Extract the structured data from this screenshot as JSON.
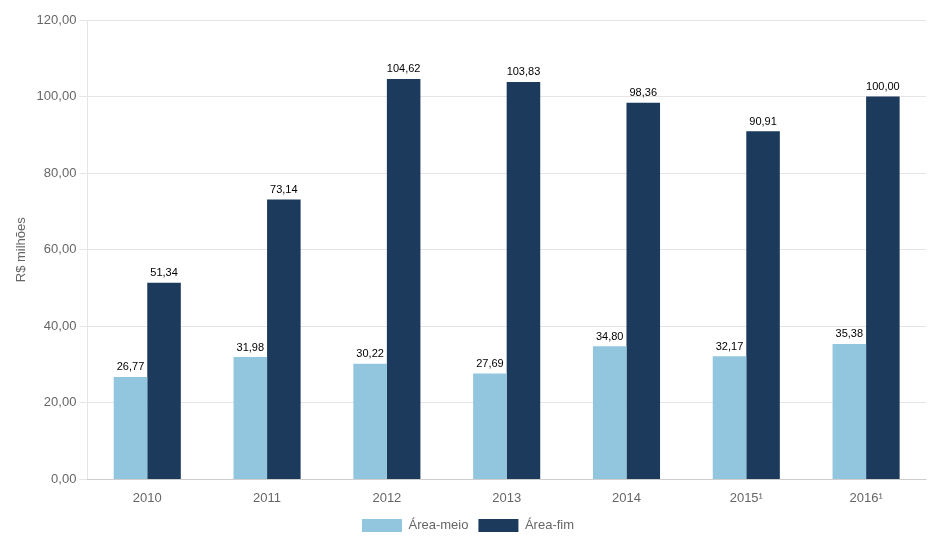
{
  "chart_data": {
    "type": "bar",
    "categories": [
      "2010",
      "2011",
      "2012",
      "2013",
      "2014",
      "2015¹",
      "2016¹"
    ],
    "series": [
      {
        "name": "Área-meio",
        "color": "#92c5de",
        "values": [
          26.77,
          31.98,
          30.22,
          27.69,
          34.8,
          32.17,
          35.38
        ],
        "value_labels": [
          "26,77",
          "31,98",
          "30,22",
          "27,69",
          "34,80",
          "32,17",
          "35,38"
        ]
      },
      {
        "name": "Área-fim",
        "color": "#1c3a5c",
        "values": [
          51.34,
          73.14,
          104.62,
          103.83,
          98.36,
          90.91,
          100.0
        ],
        "value_labels": [
          "51,34",
          "73,14",
          "104,62",
          "103,83",
          "98,36",
          "90,91",
          "100,00"
        ]
      }
    ],
    "ylabel": "R$ milhões",
    "ylim": [
      0,
      120
    ],
    "yticks": [
      {
        "value": 0,
        "label": "0,00"
      },
      {
        "value": 20,
        "label": "20,00"
      },
      {
        "value": 40,
        "label": "40,00"
      },
      {
        "value": 60,
        "label": "60,00"
      },
      {
        "value": 80,
        "label": "80,00"
      },
      {
        "value": 100,
        "label": "100,00"
      },
      {
        "value": 120,
        "label": "120,00"
      }
    ],
    "grid": true,
    "legend": "bottom",
    "data_labels": true
  }
}
